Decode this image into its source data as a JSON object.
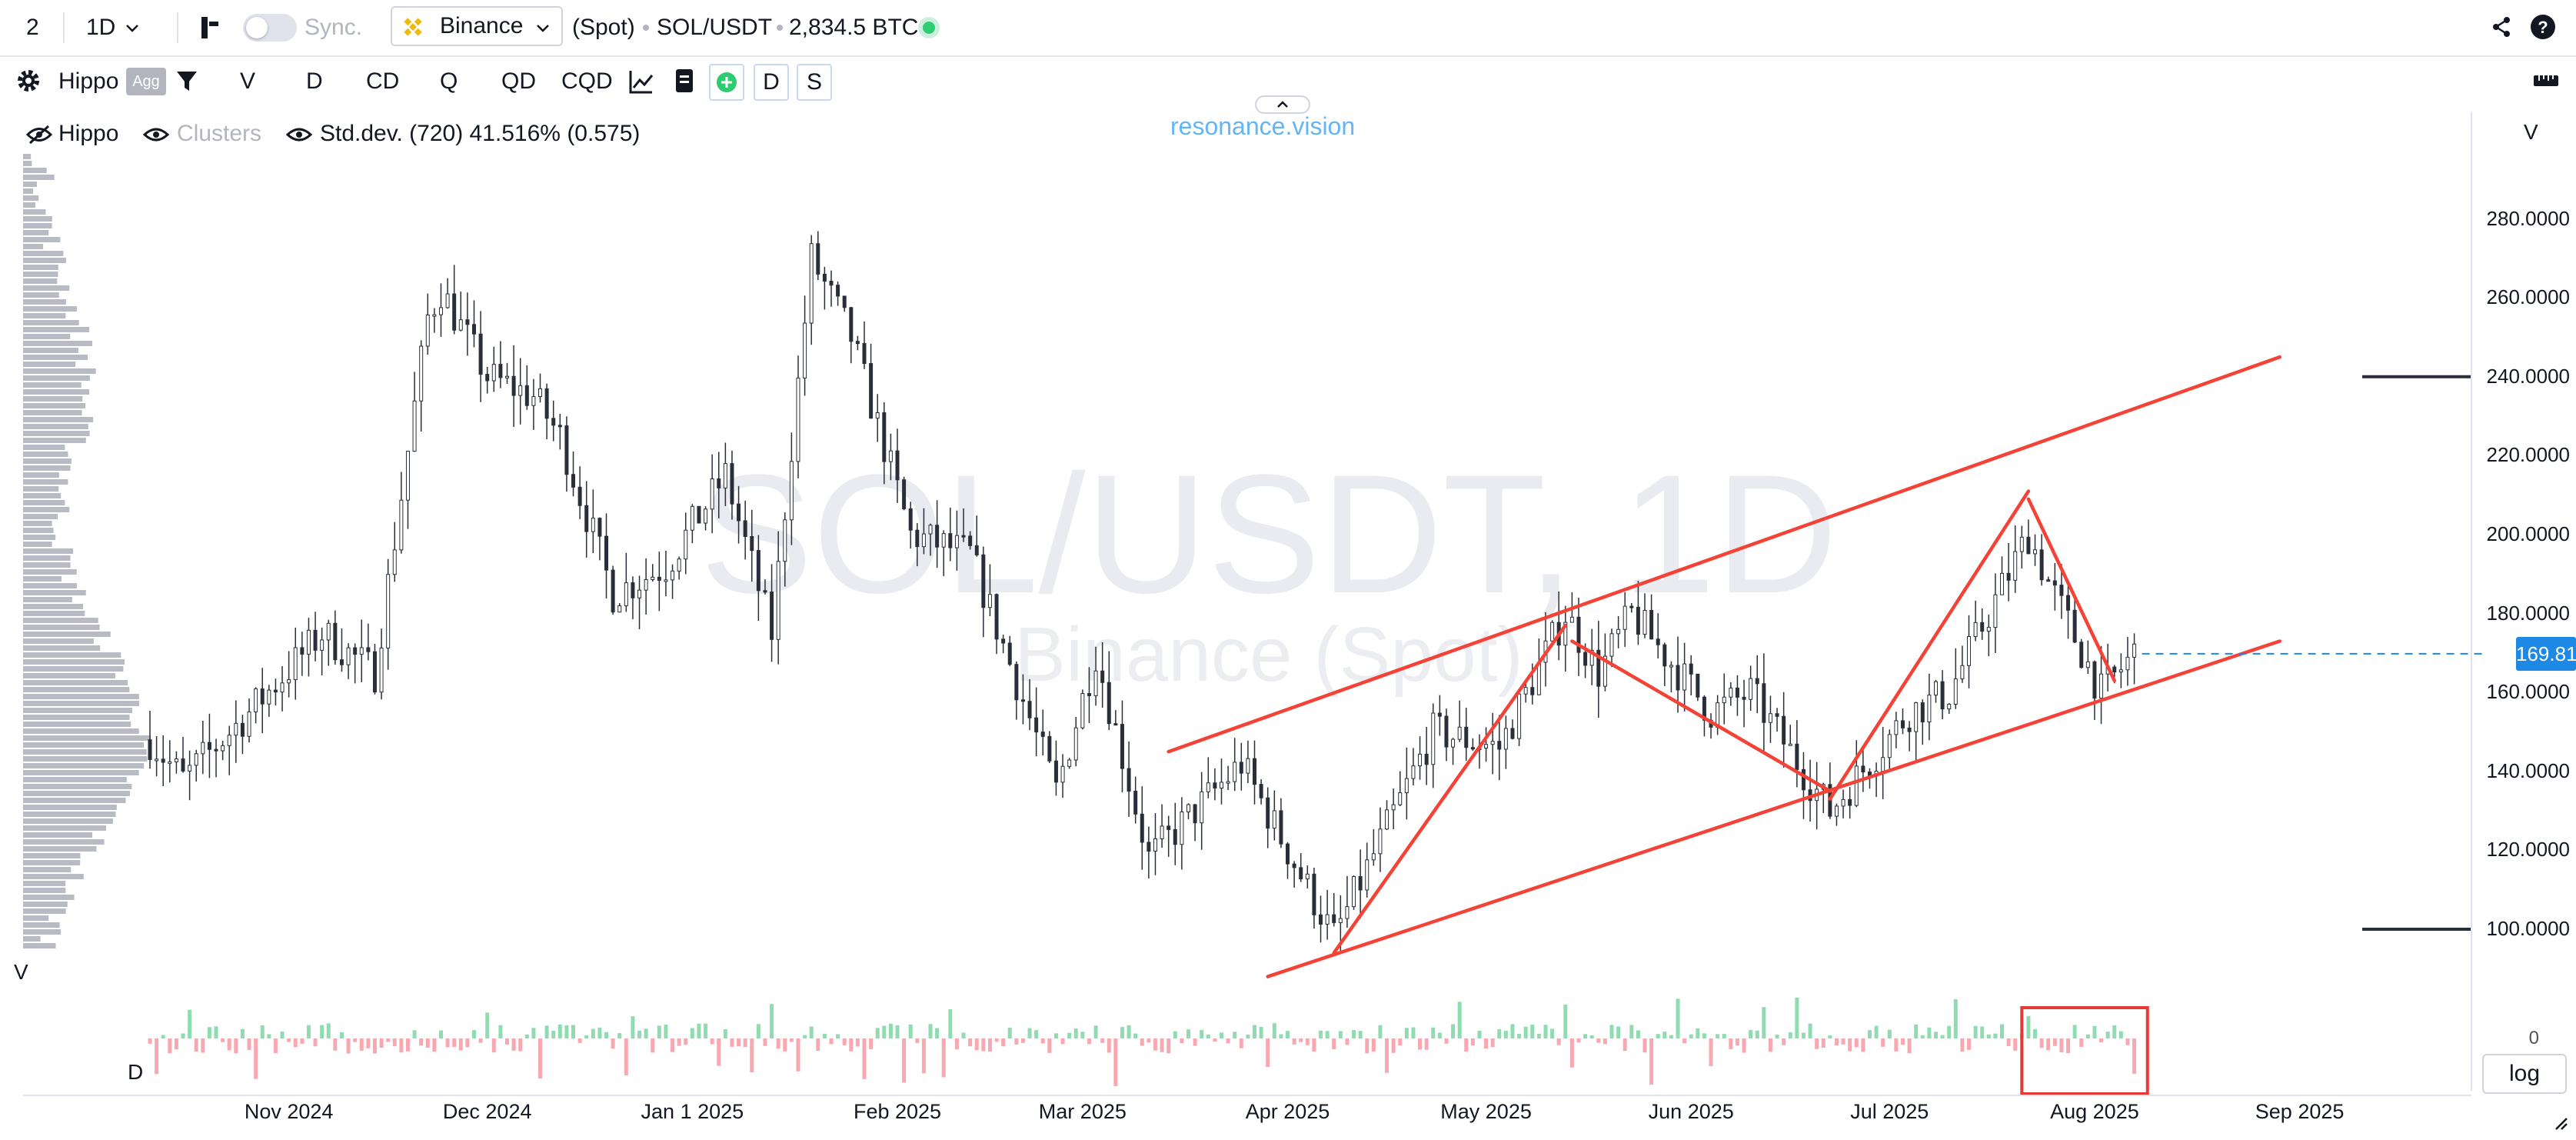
{
  "topbar": {
    "layout_count": "2",
    "interval": "1D",
    "sync_label": "Sync.",
    "exchange": "Binance",
    "market_type": "(Spot)",
    "pair": "SOL/USDT",
    "volume": "2,834.5 BTC",
    "status_color": "#2ecc71"
  },
  "toolbar": {
    "indicator_name": "Hippo",
    "agg_label": "Agg",
    "modes": [
      "V",
      "D",
      "CD",
      "Q",
      "QD",
      "CQD"
    ],
    "d_button": "D",
    "s_button": "S"
  },
  "legend": {
    "hippo": "Hippo",
    "clusters": "Clusters",
    "stddev": "Std.dev. (720) 41.516% (0.575)"
  },
  "brand": "resonance.vision",
  "watermark": {
    "line1": "SOL/USDT, 1D",
    "line2": "Binance (Spot)"
  },
  "v_label_right": "V",
  "v_label_left": "V",
  "d_label": "D",
  "volume_zero": "0",
  "log_label": "log",
  "price_axis": {
    "labels": [
      "280.0000",
      "260.0000",
      "240.0000",
      "220.0000",
      "200.0000",
      "180.0000",
      "160.0000",
      "140.0000",
      "120.0000",
      "100.0000"
    ],
    "current_price": "169.8100"
  },
  "time_axis": {
    "labels": [
      "Nov 2024",
      "Dec 2024",
      "Jan 1 2025",
      "Feb 2025",
      "Mar 2025",
      "Apr 2025",
      "May 2025",
      "Jun 2025",
      "Jul 2025",
      "Aug 2025",
      "Sep 2025"
    ]
  },
  "colors": {
    "accent": "#1e88e5",
    "brand": "#64b5f6",
    "drawing": "#f44336",
    "volume_up": "#8fdcb0",
    "volume_down": "#f7a8b0",
    "binance": "#f0b90b"
  },
  "chart_data": {
    "type": "candlestick",
    "title": "SOL/USDT, 1D",
    "subtitle": "Binance (Spot)",
    "x_range": [
      "2024-10-11",
      "2025-09-05"
    ],
    "ylim": [
      80,
      300
    ],
    "y_ticks": [
      100,
      120,
      140,
      160,
      180,
      200,
      220,
      240,
      260,
      280
    ],
    "last_price": 169.81,
    "grid": false,
    "price_path": [
      {
        "date": "2024-10-11",
        "price": 148
      },
      {
        "date": "2024-10-16",
        "price": 138
      },
      {
        "date": "2024-10-26",
        "price": 155
      },
      {
        "date": "2024-11-06",
        "price": 175
      },
      {
        "date": "2024-11-14",
        "price": 165
      },
      {
        "date": "2024-11-22",
        "price": 255
      },
      {
        "date": "2024-11-24",
        "price": 262
      },
      {
        "date": "2024-12-01",
        "price": 240
      },
      {
        "date": "2024-12-08",
        "price": 235
      },
      {
        "date": "2024-12-12",
        "price": 225
      },
      {
        "date": "2024-12-20",
        "price": 185
      },
      {
        "date": "2024-12-28",
        "price": 192
      },
      {
        "date": "2025-01-06",
        "price": 215
      },
      {
        "date": "2025-01-13",
        "price": 175
      },
      {
        "date": "2025-01-19",
        "price": 270
      },
      {
        "date": "2025-01-25",
        "price": 250
      },
      {
        "date": "2025-02-03",
        "price": 200
      },
      {
        "date": "2025-02-12",
        "price": 195
      },
      {
        "date": "2025-02-25",
        "price": 135
      },
      {
        "date": "2025-03-03",
        "price": 170
      },
      {
        "date": "2025-03-11",
        "price": 118
      },
      {
        "date": "2025-03-25",
        "price": 142
      },
      {
        "date": "2025-04-08",
        "price": 98
      },
      {
        "date": "2025-04-23",
        "price": 150
      },
      {
        "date": "2025-05-03",
        "price": 146
      },
      {
        "date": "2025-05-13",
        "price": 180
      },
      {
        "date": "2025-05-18",
        "price": 165
      },
      {
        "date": "2025-05-23",
        "price": 180
      },
      {
        "date": "2025-06-04",
        "price": 155
      },
      {
        "date": "2025-06-10",
        "price": 160
      },
      {
        "date": "2025-06-22",
        "price": 130
      },
      {
        "date": "2025-07-04",
        "price": 155
      },
      {
        "date": "2025-07-10",
        "price": 160
      },
      {
        "date": "2025-07-22",
        "price": 200
      },
      {
        "date": "2025-07-25",
        "price": 188
      },
      {
        "date": "2025-08-02",
        "price": 160
      },
      {
        "date": "2025-08-07",
        "price": 170
      }
    ],
    "drawings": [
      {
        "name": "channel-upper",
        "from": {
          "date": "2025-03-14",
          "price": 145
        },
        "to": {
          "date": "2025-08-29",
          "price": 245
        }
      },
      {
        "name": "channel-lower",
        "from": {
          "date": "2025-03-29",
          "price": 88
        },
        "to": {
          "date": "2025-08-29",
          "price": 173
        }
      },
      {
        "name": "wave-1",
        "from": {
          "date": "2025-04-08",
          "price": 94
        },
        "to": {
          "date": "2025-05-13",
          "price": 177
        }
      },
      {
        "name": "wave-2",
        "from": {
          "date": "2025-05-14",
          "price": 173
        },
        "to": {
          "date": "2025-06-22",
          "price": 135
        }
      },
      {
        "name": "wave-3",
        "from": {
          "date": "2025-06-22",
          "price": 133
        },
        "to": {
          "date": "2025-07-22",
          "price": 211
        }
      },
      {
        "name": "wave-4",
        "from": {
          "date": "2025-07-22",
          "price": 209
        },
        "to": {
          "date": "2025-08-04",
          "price": 163
        }
      }
    ],
    "levels": [
      240,
      100
    ],
    "highlight": {
      "from": "2025-07-21",
      "to": "2025-08-09",
      "pane": "volume"
    }
  }
}
